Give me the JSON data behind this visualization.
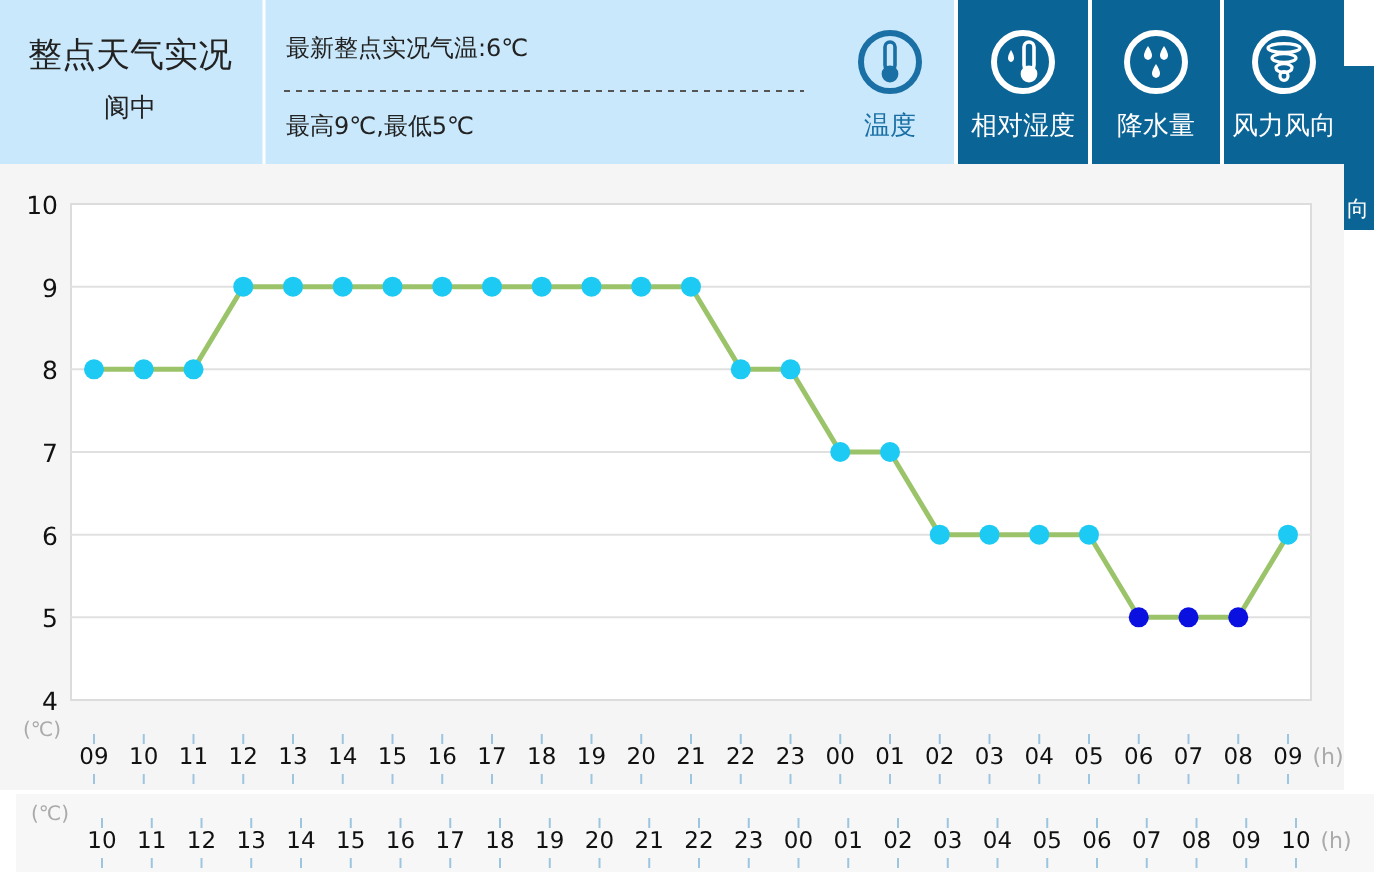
{
  "chart_data": {
    "type": "line",
    "title": "整点天气实况",
    "subtitle": "阆中",
    "annotations": [
      "最新整点实况气温:6℃",
      "最高9℃,最低5℃",
      "温度",
      "相对湿度",
      "降水量",
      "风力风向",
      "向",
      "(℃)",
      "10",
      "11",
      "12",
      "13",
      "14",
      "15",
      "16",
      "17",
      "18",
      "19",
      "20",
      "21",
      "22",
      "23",
      "00",
      "01",
      "02",
      "03",
      "04",
      "05",
      "06",
      "07",
      "08",
      "09",
      "10",
      "(h)"
    ],
    "categories": [
      "09",
      "10",
      "11",
      "12",
      "13",
      "14",
      "15",
      "16",
      "17",
      "18",
      "19",
      "20",
      "21",
      "22",
      "23",
      "00",
      "01",
      "02",
      "03",
      "04",
      "05",
      "06",
      "07",
      "08",
      "09"
    ],
    "ylabel": "(℃)",
    "xlabel": "(h)",
    "ylim": [
      4,
      10
    ],
    "yticks": [
      4,
      5,
      6,
      7,
      8,
      9,
      10
    ],
    "grid": "y",
    "marker": "circle",
    "line_style": "solid",
    "series": [
      {
        "color": "#9bc46a",
        "colors": [
          "#1ccaf3",
          "#1ccaf3",
          "#1ccaf3",
          "#1ccaf3",
          "#1ccaf3",
          "#1ccaf3",
          "#1ccaf3",
          "#1ccaf3",
          "#1ccaf3",
          "#1ccaf3",
          "#1ccaf3",
          "#1ccaf3",
          "#1ccaf3",
          "#1ccaf3",
          "#1ccaf3",
          "#1ccaf3",
          "#1ccaf3",
          "#1ccaf3",
          "#1ccaf3",
          "#1ccaf3",
          "#1ccaf3",
          "#0a10e0",
          "#0a10e0",
          "#0a10e0",
          "#1ccaf3"
        ],
        "values": [
          8,
          8,
          8,
          9,
          9,
          9,
          9,
          9,
          9,
          9,
          9,
          9,
          9,
          8,
          8,
          7,
          7,
          6,
          6,
          6,
          6,
          5,
          5,
          5,
          6
        ]
      }
    ]
  }
}
